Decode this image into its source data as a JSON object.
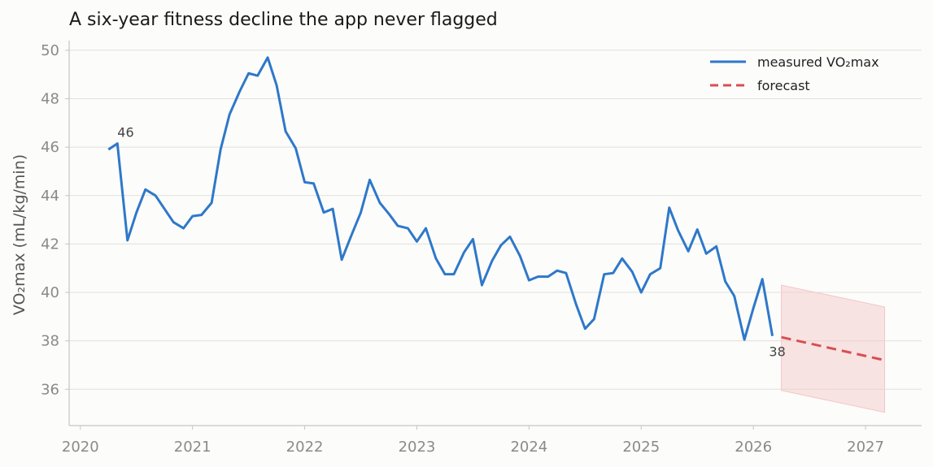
{
  "chart_data": {
    "type": "line",
    "title": "A six-year fitness decline the app never flagged",
    "xlabel": "",
    "ylabel": "VO₂max (mL/kg/min)",
    "xlim": [
      2019.9,
      2027.5
    ],
    "ylim": [
      34.5,
      50.4
    ],
    "x_ticks": [
      2020,
      2021,
      2022,
      2023,
      2024,
      2025,
      2026,
      2027
    ],
    "x_tick_labels": [
      "2020",
      "2021",
      "2022",
      "2023",
      "2024",
      "2025",
      "2026",
      "2027"
    ],
    "y_ticks": [
      36,
      38,
      40,
      42,
      44,
      46,
      48,
      50
    ],
    "y_tick_labels": [
      "36",
      "38",
      "40",
      "42",
      "44",
      "46",
      "48",
      "50"
    ],
    "grid": "horizontal",
    "legend_position": "top-right",
    "colors": {
      "measured": "#2e78c9",
      "forecast": "#d94f4f",
      "band": "#f4c6c6"
    },
    "series": [
      {
        "name": "measured VO₂max",
        "style": "solid",
        "x": [
          2020.25,
          2020.33,
          2020.42,
          2020.5,
          2020.58,
          2020.67,
          2020.75,
          2020.83,
          2020.92,
          2021.0,
          2021.08,
          2021.17,
          2021.25,
          2021.33,
          2021.42,
          2021.5,
          2021.58,
          2021.67,
          2021.75,
          2021.83,
          2021.92,
          2022.0,
          2022.08,
          2022.17,
          2022.25,
          2022.33,
          2022.42,
          2022.5,
          2022.58,
          2022.67,
          2022.75,
          2022.83,
          2022.92,
          2023.0,
          2023.08,
          2023.17,
          2023.25,
          2023.33,
          2023.42,
          2023.5,
          2023.58,
          2023.67,
          2023.75,
          2023.83,
          2023.92,
          2024.0,
          2024.08,
          2024.17,
          2024.25,
          2024.33,
          2024.42,
          2024.5,
          2024.58,
          2024.67,
          2024.75,
          2024.83,
          2024.92,
          2025.0,
          2025.08,
          2025.17,
          2025.25,
          2025.33,
          2025.42,
          2025.5,
          2025.58,
          2025.67,
          2025.75,
          2025.83,
          2025.92,
          2026.0,
          2026.08,
          2026.17
        ],
        "values": [
          45.9,
          46.15,
          42.15,
          43.3,
          44.25,
          44.0,
          43.45,
          42.9,
          42.65,
          43.15,
          43.2,
          43.7,
          45.9,
          47.35,
          48.3,
          49.05,
          48.95,
          49.7,
          48.55,
          46.65,
          45.95,
          44.55,
          44.5,
          43.3,
          43.45,
          41.35,
          42.4,
          43.3,
          44.65,
          43.7,
          43.25,
          42.75,
          42.65,
          42.1,
          42.65,
          41.4,
          40.75,
          40.75,
          41.65,
          42.2,
          40.3,
          41.3,
          41.95,
          42.3,
          41.5,
          40.5,
          40.65,
          40.65,
          40.9,
          40.8,
          39.5,
          38.5,
          38.9,
          40.75,
          40.8,
          41.4,
          40.85,
          40.0,
          40.75,
          41.0,
          43.5,
          42.55,
          41.7,
          42.6,
          41.6,
          41.9,
          40.45,
          39.85,
          38.05,
          39.35,
          40.55,
          38.2
        ]
      },
      {
        "name": "forecast",
        "style": "dashed",
        "x": [
          2026.25,
          2027.17
        ],
        "values": [
          38.15,
          37.2
        ]
      }
    ],
    "forecast_band": {
      "x": [
        2026.25,
        2027.17
      ],
      "upper": [
        40.3,
        39.4
      ],
      "lower": [
        35.95,
        35.05
      ]
    },
    "annotations": [
      {
        "text": "46",
        "x": 2020.33,
        "y": 46.15,
        "placement": "above-right"
      },
      {
        "text": "38",
        "x": 2026.17,
        "y": 38.2,
        "placement": "below"
      }
    ]
  }
}
